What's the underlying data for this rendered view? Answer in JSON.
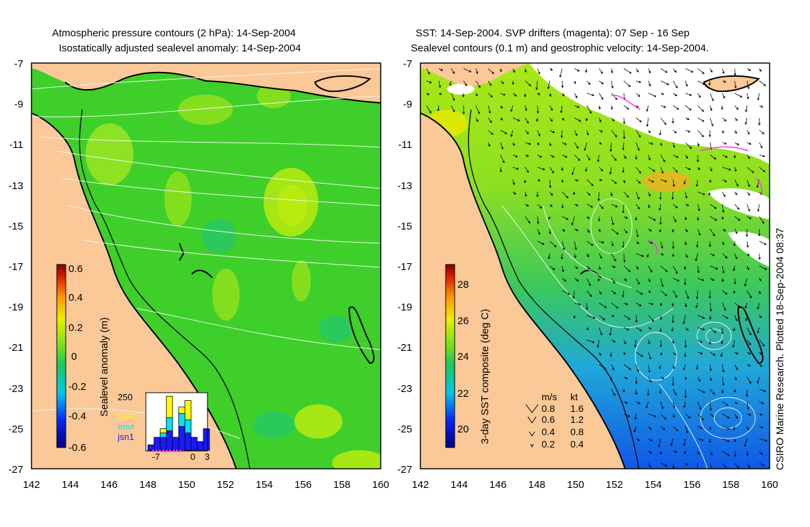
{
  "left_panel": {
    "title_line1": "Atmospheric pressure contours (2 hPa): 14-Sep-2004",
    "title_line2": "Isostatically adjusted sealevel anomaly: 14-Sep-2004",
    "colorbar": {
      "label": "Sealevel anomaly (m)",
      "ticks": [
        "0.6",
        "0.4",
        "0.2",
        "0",
        "-0.2",
        "-0.4",
        "-0.6"
      ]
    },
    "inset": {
      "y_tick": "250",
      "x_ticks": [
        "-7",
        "0",
        "3"
      ],
      "legend": [
        {
          "label": "GFO",
          "color": "#ffff00"
        },
        {
          "label": "envi",
          "color": "#00e5ff"
        },
        {
          "label": "jsn1",
          "color": "#1a1aff"
        }
      ],
      "bars": [
        {
          "x": -7,
          "gfo": 10,
          "envi": 10,
          "jsn1": 25
        },
        {
          "x": -6,
          "gfo": 0,
          "envi": 40,
          "jsn1": 60
        },
        {
          "x": -5,
          "gfo": 100,
          "envi": 80,
          "jsn1": 60
        },
        {
          "x": -4,
          "gfo": 250,
          "envi": 150,
          "jsn1": 90
        },
        {
          "x": -3,
          "gfo": 0,
          "envi": 0,
          "jsn1": 60
        },
        {
          "x": -2,
          "gfo": 200,
          "envi": 170,
          "jsn1": 110
        },
        {
          "x": -1,
          "gfo": 230,
          "envi": 140,
          "jsn1": 80
        },
        {
          "x": 0,
          "gfo": 0,
          "envi": 0,
          "jsn1": 60
        },
        {
          "x": 1,
          "gfo": 0,
          "envi": 0,
          "jsn1": 40
        },
        {
          "x": 2,
          "gfo": 0,
          "envi": 0,
          "jsn1": 100
        }
      ]
    }
  },
  "right_panel": {
    "title_line1": "SST: 14-Sep-2004. SVP drifters (magenta): 07 Sep - 16 Sep",
    "title_line2": "Sealevel contours (0.1 m) and geostrophic velocity: 14-Sep-2004.",
    "colorbar": {
      "label": "3-day SST composite (deg C)",
      "ticks": [
        "28",
        "26",
        "24",
        "22",
        "20"
      ]
    },
    "speed_legend": {
      "header_ms": "m/s",
      "header_kt": "kt",
      "rows": [
        {
          "ms": "0.8",
          "kt": "1.6"
        },
        {
          "ms": "0.6",
          "kt": "1.2"
        },
        {
          "ms": "0.4",
          "kt": "0.8"
        },
        {
          "ms": "0.2",
          "kt": "0.4"
        }
      ]
    }
  },
  "axes": {
    "x_ticks": [
      "142",
      "144",
      "146",
      "148",
      "150",
      "152",
      "154",
      "156",
      "158",
      "160"
    ],
    "y_ticks": [
      "-7",
      "-9",
      "-11",
      "-13",
      "-15",
      "-17",
      "-19",
      "-21",
      "-23",
      "-25",
      "-27"
    ]
  },
  "credit": "CSIRO Marine Research. Plotted 18-Sep-2004 08:37",
  "colors": {
    "land": "#fbc898",
    "sea_green": "#3fcf2a",
    "coast": "#000000",
    "contour": "#e8f2e8",
    "drifter": "#ff33ff"
  }
}
